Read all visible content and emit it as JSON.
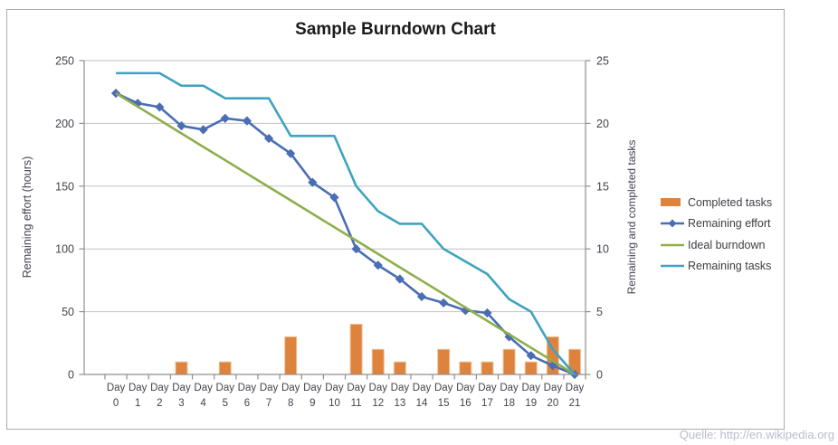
{
  "chart": {
    "title": "Sample Burndown Chart",
    "source": "Quelle: http://en.wikipedia.org",
    "chart_data": {
      "type": "combo-bar-line",
      "title": "Sample Burndown Chart",
      "categories": [
        "Day 0",
        "Day 1",
        "Day 2",
        "Day 3",
        "Day 4",
        "Day 5",
        "Day 6",
        "Day 7",
        "Day 8",
        "Day 9",
        "Day 10",
        "Day 11",
        "Day 12",
        "Day 13",
        "Day 14",
        "Day 15",
        "Day 16",
        "Day 17",
        "Day 18",
        "Day 19",
        "Day 20",
        "Day 21"
      ],
      "left_axis": {
        "title": "Remaining effort (hours)",
        "min": 0,
        "max": 250,
        "step": 50,
        "tick_labels": [
          "0",
          "50",
          "100",
          "150",
          "200",
          "250"
        ]
      },
      "right_axis": {
        "title": "Remaining and completed tasks",
        "min": 0,
        "max": 25,
        "step": 5,
        "tick_labels": [
          "0",
          "5",
          "10",
          "15",
          "20",
          "25"
        ]
      },
      "grid": true,
      "legend_position": "right",
      "series": [
        {
          "name": "Completed tasks",
          "type": "bar",
          "axis": "right",
          "color": "#DE833D",
          "values": [
            0,
            0,
            0,
            1,
            0,
            1,
            0,
            0,
            3,
            0,
            0,
            4,
            2,
            1,
            0,
            2,
            1,
            1,
            2,
            1,
            3,
            2
          ]
        },
        {
          "name": "Remaining effort",
          "type": "line",
          "marker": "diamond",
          "axis": "left",
          "color": "#4A6DB5",
          "values": [
            224,
            216,
            213,
            198,
            195,
            204,
            202,
            188,
            176,
            153,
            141,
            100,
            87,
            76,
            62,
            57,
            51,
            49,
            30,
            15,
            7,
            0
          ]
        },
        {
          "name": "Ideal burndown",
          "type": "line",
          "axis": "left",
          "color": "#8FAE4C",
          "values": [
            224,
            213.3,
            202.7,
            192,
            181.3,
            170.7,
            160,
            149.3,
            138.7,
            128,
            117.3,
            106.7,
            96,
            85.3,
            74.7,
            64,
            53.3,
            42.7,
            32,
            21.3,
            10.7,
            0
          ]
        },
        {
          "name": "Remaining tasks",
          "type": "line",
          "axis": "right",
          "color": "#3EA3BF",
          "values": [
            24,
            24,
            24,
            23,
            23,
            22,
            22,
            22,
            19,
            19,
            19,
            15,
            13,
            12,
            12,
            10,
            9,
            8,
            6,
            5,
            2,
            0
          ]
        }
      ],
      "colors": {
        "gridline": "#c2c2c2",
        "axis_line": "#8f8f8f",
        "tick_text": "#43434f",
        "title_text": "#1b1b1b",
        "bar_edge": "#f0c49a"
      }
    }
  }
}
